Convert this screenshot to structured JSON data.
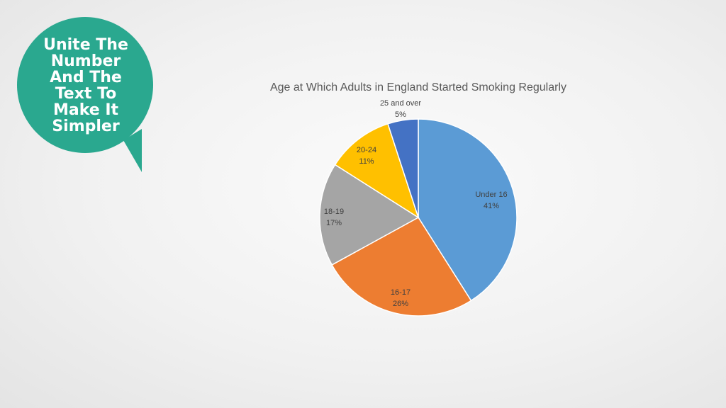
{
  "callout": {
    "lines": [
      "Unite The",
      "Number",
      "And The",
      "Text To",
      "Make It",
      "Simpler"
    ],
    "color": "#2aa88f"
  },
  "chart_data": {
    "type": "pie",
    "title": "Age at Which Adults in England Started Smoking Regularly",
    "categories": [
      "Under 16",
      "16-17",
      "18-19",
      "20-24",
      "25 and over"
    ],
    "values": [
      41,
      26,
      17,
      11,
      5
    ],
    "labels": [
      "41%",
      "26%",
      "17%",
      "11%",
      "5%"
    ],
    "colors": [
      "#5b9bd5",
      "#ed7d31",
      "#a5a5a5",
      "#ffc000",
      "#4472c4"
    ],
    "start": "12 o'clock",
    "direction": "clockwise",
    "legend": "none"
  }
}
